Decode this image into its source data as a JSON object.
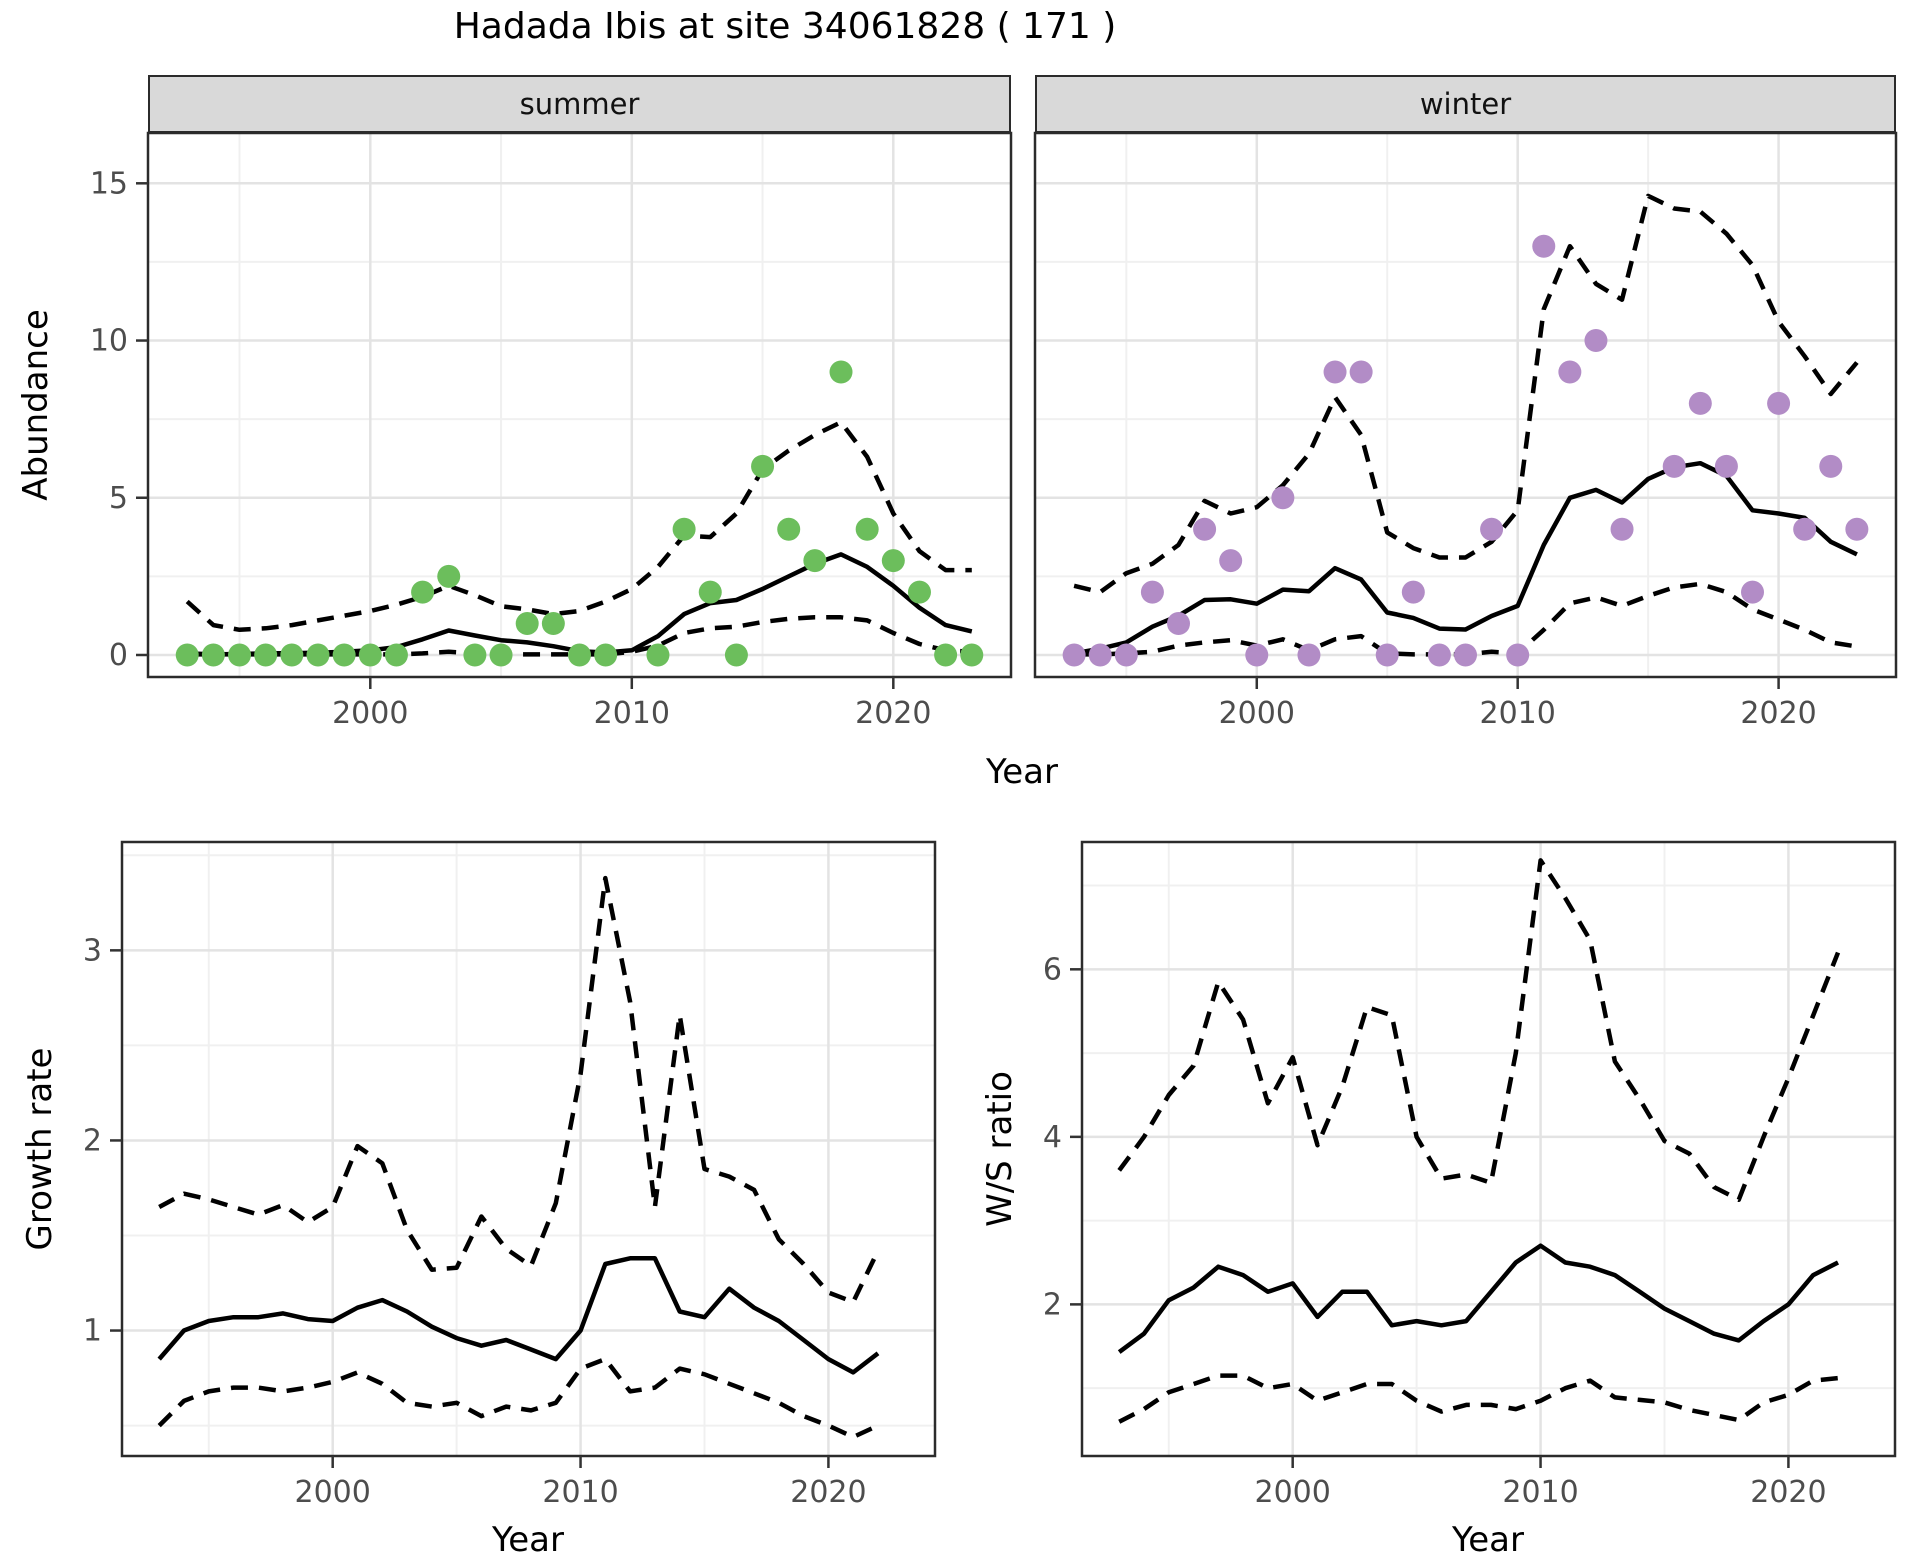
{
  "title": "Hadada Ibis at site 34061828 ( 171 )",
  "colors": {
    "summer_points": "#6CBE5C",
    "winter_points": "#B28CC6",
    "line": "#000000",
    "strip_bg": "#d9d9d9",
    "grid_major": "#e3e3e3",
    "grid_minor": "#f0f0f0",
    "panel_border": "#2b2b2b",
    "tick_label": "#4d4d4d"
  },
  "chart_data": [
    {
      "id": "abundance",
      "type": "line",
      "xlabel": "Year",
      "ylabel": "Abundance",
      "x_ticks": [
        2000,
        2010,
        2020
      ],
      "y_ticks": [
        0,
        5,
        10,
        15
      ],
      "xlim": [
        1991.5,
        2024.5
      ],
      "ylim": [
        -0.7,
        16.6
      ],
      "grid": true,
      "legend": "none",
      "years": [
        1993,
        1994,
        1995,
        1996,
        1997,
        1998,
        1999,
        2000,
        2001,
        2002,
        2003,
        2004,
        2005,
        2006,
        2007,
        2008,
        2009,
        2010,
        2011,
        2012,
        2013,
        2014,
        2015,
        2016,
        2017,
        2018,
        2019,
        2020,
        2021,
        2022,
        2023
      ],
      "facets": [
        {
          "label": "summer",
          "points": [
            [
              1993,
              0
            ],
            [
              1994,
              0
            ],
            [
              1995,
              0
            ],
            [
              1996,
              0
            ],
            [
              1997,
              0
            ],
            [
              1998,
              0
            ],
            [
              1999,
              0
            ],
            [
              2000,
              0
            ],
            [
              2001,
              0
            ],
            [
              2002,
              2
            ],
            [
              2003,
              2.5
            ],
            [
              2004,
              0
            ],
            [
              2005,
              0
            ],
            [
              2006,
              1
            ],
            [
              2007,
              1
            ],
            [
              2008,
              0
            ],
            [
              2009,
              0
            ],
            [
              2011,
              0
            ],
            [
              2012,
              4
            ],
            [
              2013,
              2
            ],
            [
              2014,
              0
            ],
            [
              2015,
              6
            ],
            [
              2016,
              4
            ],
            [
              2017,
              3
            ],
            [
              2018,
              9
            ],
            [
              2019,
              4
            ],
            [
              2020,
              3
            ],
            [
              2021,
              2
            ],
            [
              2022,
              0
            ],
            [
              2023,
              0
            ]
          ],
          "median": [
            0.02,
            0.02,
            0.03,
            0.05,
            0.06,
            0.07,
            0.1,
            0.15,
            0.25,
            0.5,
            0.78,
            0.62,
            0.47,
            0.4,
            0.28,
            0.12,
            0.08,
            0.15,
            0.6,
            1.3,
            1.65,
            1.75,
            2.1,
            2.5,
            2.9,
            3.2,
            2.8,
            2.2,
            1.5,
            0.95,
            0.75
          ],
          "upper": [
            1.7,
            0.95,
            0.8,
            0.85,
            0.95,
            1.1,
            1.25,
            1.4,
            1.6,
            1.85,
            2.2,
            1.9,
            1.55,
            1.45,
            1.3,
            1.4,
            1.7,
            2.1,
            2.8,
            3.8,
            3.75,
            4.5,
            5.9,
            6.5,
            7.0,
            7.4,
            6.3,
            4.5,
            3.3,
            2.7,
            2.7
          ],
          "lower": [
            0.05,
            0.02,
            0.02,
            0.02,
            0.02,
            0.02,
            0.02,
            0.02,
            0.02,
            0.05,
            0.1,
            0.05,
            0.02,
            0.02,
            0.02,
            0.02,
            0.02,
            0.1,
            0.3,
            0.7,
            0.85,
            0.9,
            1.05,
            1.15,
            1.2,
            1.2,
            1.1,
            0.7,
            0.35,
            0.15,
            0.1
          ]
        },
        {
          "label": "winter",
          "points": [
            [
              1993,
              0
            ],
            [
              1994,
              0
            ],
            [
              1995,
              0
            ],
            [
              1996,
              2
            ],
            [
              1997,
              1
            ],
            [
              1998,
              4
            ],
            [
              1999,
              3
            ],
            [
              2000,
              0
            ],
            [
              2001,
              5
            ],
            [
              2002,
              0
            ],
            [
              2003,
              9
            ],
            [
              2004,
              9
            ],
            [
              2005,
              0
            ],
            [
              2006,
              2
            ],
            [
              2007,
              0
            ],
            [
              2008,
              0
            ],
            [
              2009,
              4
            ],
            [
              2010,
              0
            ],
            [
              2011,
              13
            ],
            [
              2012,
              9
            ],
            [
              2013,
              10
            ],
            [
              2014,
              4
            ],
            [
              2016,
              6
            ],
            [
              2017,
              8
            ],
            [
              2018,
              6
            ],
            [
              2019,
              2
            ],
            [
              2020,
              8
            ],
            [
              2021,
              4
            ],
            [
              2022,
              6
            ],
            [
              2023,
              4
            ]
          ],
          "median": [
            0.05,
            0.2,
            0.4,
            0.9,
            1.25,
            1.75,
            1.77,
            1.63,
            2.08,
            2.03,
            2.76,
            2.4,
            1.35,
            1.18,
            0.84,
            0.81,
            1.24,
            1.56,
            3.5,
            5.0,
            5.25,
            4.85,
            5.6,
            5.97,
            6.1,
            5.7,
            4.6,
            4.5,
            4.36,
            3.6,
            3.2
          ],
          "upper": [
            2.2,
            2.0,
            2.6,
            2.9,
            3.5,
            4.9,
            4.5,
            4.7,
            5.4,
            6.4,
            8.2,
            7.0,
            3.9,
            3.4,
            3.1,
            3.1,
            3.6,
            4.6,
            11.0,
            13.0,
            11.8,
            11.3,
            14.6,
            14.2,
            14.1,
            13.4,
            12.4,
            10.6,
            9.5,
            8.3,
            9.3
          ],
          "lower": [
            0.02,
            0.02,
            0.05,
            0.1,
            0.3,
            0.4,
            0.47,
            0.3,
            0.5,
            0.15,
            0.5,
            0.6,
            0.05,
            0.02,
            0.02,
            0.02,
            0.1,
            0.05,
            0.8,
            1.64,
            1.83,
            1.56,
            1.88,
            2.15,
            2.26,
            2.0,
            1.45,
            1.13,
            0.8,
            0.4,
            0.27
          ]
        }
      ]
    },
    {
      "id": "growth_rate",
      "type": "line",
      "xlabel": "Year",
      "ylabel": "Growth rate",
      "x_ticks": [
        2000,
        2010,
        2020
      ],
      "y_ticks": [
        1,
        2,
        3
      ],
      "xlim": [
        1991.5,
        2024.3
      ],
      "ylim": [
        0.34,
        3.57
      ],
      "grid": true,
      "legend": "none",
      "years": [
        1993,
        1994,
        1995,
        1996,
        1997,
        1998,
        1999,
        2000,
        2001,
        2002,
        2003,
        2004,
        2005,
        2006,
        2007,
        2008,
        2009,
        2010,
        2011,
        2012,
        2013,
        2014,
        2015,
        2016,
        2017,
        2018,
        2019,
        2020,
        2021,
        2022
      ],
      "median": [
        0.85,
        1.0,
        1.05,
        1.07,
        1.07,
        1.09,
        1.06,
        1.05,
        1.12,
        1.16,
        1.1,
        1.02,
        0.96,
        0.92,
        0.95,
        0.9,
        0.85,
        1.0,
        1.35,
        1.38,
        1.38,
        1.1,
        1.07,
        1.22,
        1.12,
        1.05,
        0.95,
        0.85,
        0.78,
        0.88
      ],
      "upper": [
        1.65,
        1.72,
        1.69,
        1.65,
        1.61,
        1.66,
        1.57,
        1.65,
        1.97,
        1.88,
        1.53,
        1.32,
        1.33,
        1.6,
        1.43,
        1.34,
        1.67,
        2.35,
        3.38,
        2.73,
        1.65,
        2.66,
        1.85,
        1.81,
        1.74,
        1.48,
        1.35,
        1.2,
        1.15,
        1.42
      ],
      "lower": [
        0.5,
        0.63,
        0.68,
        0.7,
        0.7,
        0.68,
        0.7,
        0.73,
        0.78,
        0.72,
        0.62,
        0.6,
        0.62,
        0.55,
        0.6,
        0.58,
        0.62,
        0.8,
        0.85,
        0.68,
        0.7,
        0.8,
        0.77,
        0.72,
        0.67,
        0.62,
        0.55,
        0.5,
        0.44,
        0.5
      ]
    },
    {
      "id": "ws_ratio",
      "type": "line",
      "xlabel": "Year",
      "ylabel": "W/S ratio",
      "x_ticks": [
        2000,
        2010,
        2020
      ],
      "y_ticks": [
        2,
        4,
        6
      ],
      "xlim": [
        1991.5,
        2024.3
      ],
      "ylim": [
        0.19,
        7.52
      ],
      "grid": true,
      "legend": "none",
      "years": [
        1993,
        1994,
        1995,
        1996,
        1997,
        1998,
        1999,
        2000,
        2001,
        2002,
        2003,
        2004,
        2005,
        2006,
        2007,
        2008,
        2009,
        2010,
        2011,
        2012,
        2013,
        2014,
        2015,
        2016,
        2017,
        2018,
        2019,
        2020,
        2021,
        2022
      ],
      "median": [
        1.43,
        1.65,
        2.05,
        2.2,
        2.45,
        2.35,
        2.15,
        2.25,
        1.85,
        2.15,
        2.15,
        1.75,
        1.8,
        1.75,
        1.8,
        2.15,
        2.5,
        2.7,
        2.5,
        2.45,
        2.35,
        2.15,
        1.95,
        1.8,
        1.65,
        1.57,
        1.8,
        2.0,
        2.35,
        2.5
      ],
      "upper": [
        3.6,
        4.0,
        4.5,
        4.85,
        5.85,
        5.4,
        4.4,
        4.95,
        3.9,
        4.6,
        5.55,
        5.45,
        4.0,
        3.5,
        3.55,
        3.45,
        5.0,
        7.3,
        6.85,
        6.35,
        4.9,
        4.45,
        3.95,
        3.8,
        3.4,
        3.25,
        4.0,
        4.7,
        5.45,
        6.2
      ],
      "lower": [
        0.6,
        0.75,
        0.95,
        1.05,
        1.15,
        1.15,
        1.0,
        1.05,
        0.85,
        0.95,
        1.05,
        1.05,
        0.85,
        0.72,
        0.8,
        0.8,
        0.75,
        0.85,
        1.0,
        1.09,
        0.89,
        0.86,
        0.83,
        0.74,
        0.68,
        0.62,
        0.83,
        0.92,
        1.09,
        1.12
      ]
    }
  ]
}
